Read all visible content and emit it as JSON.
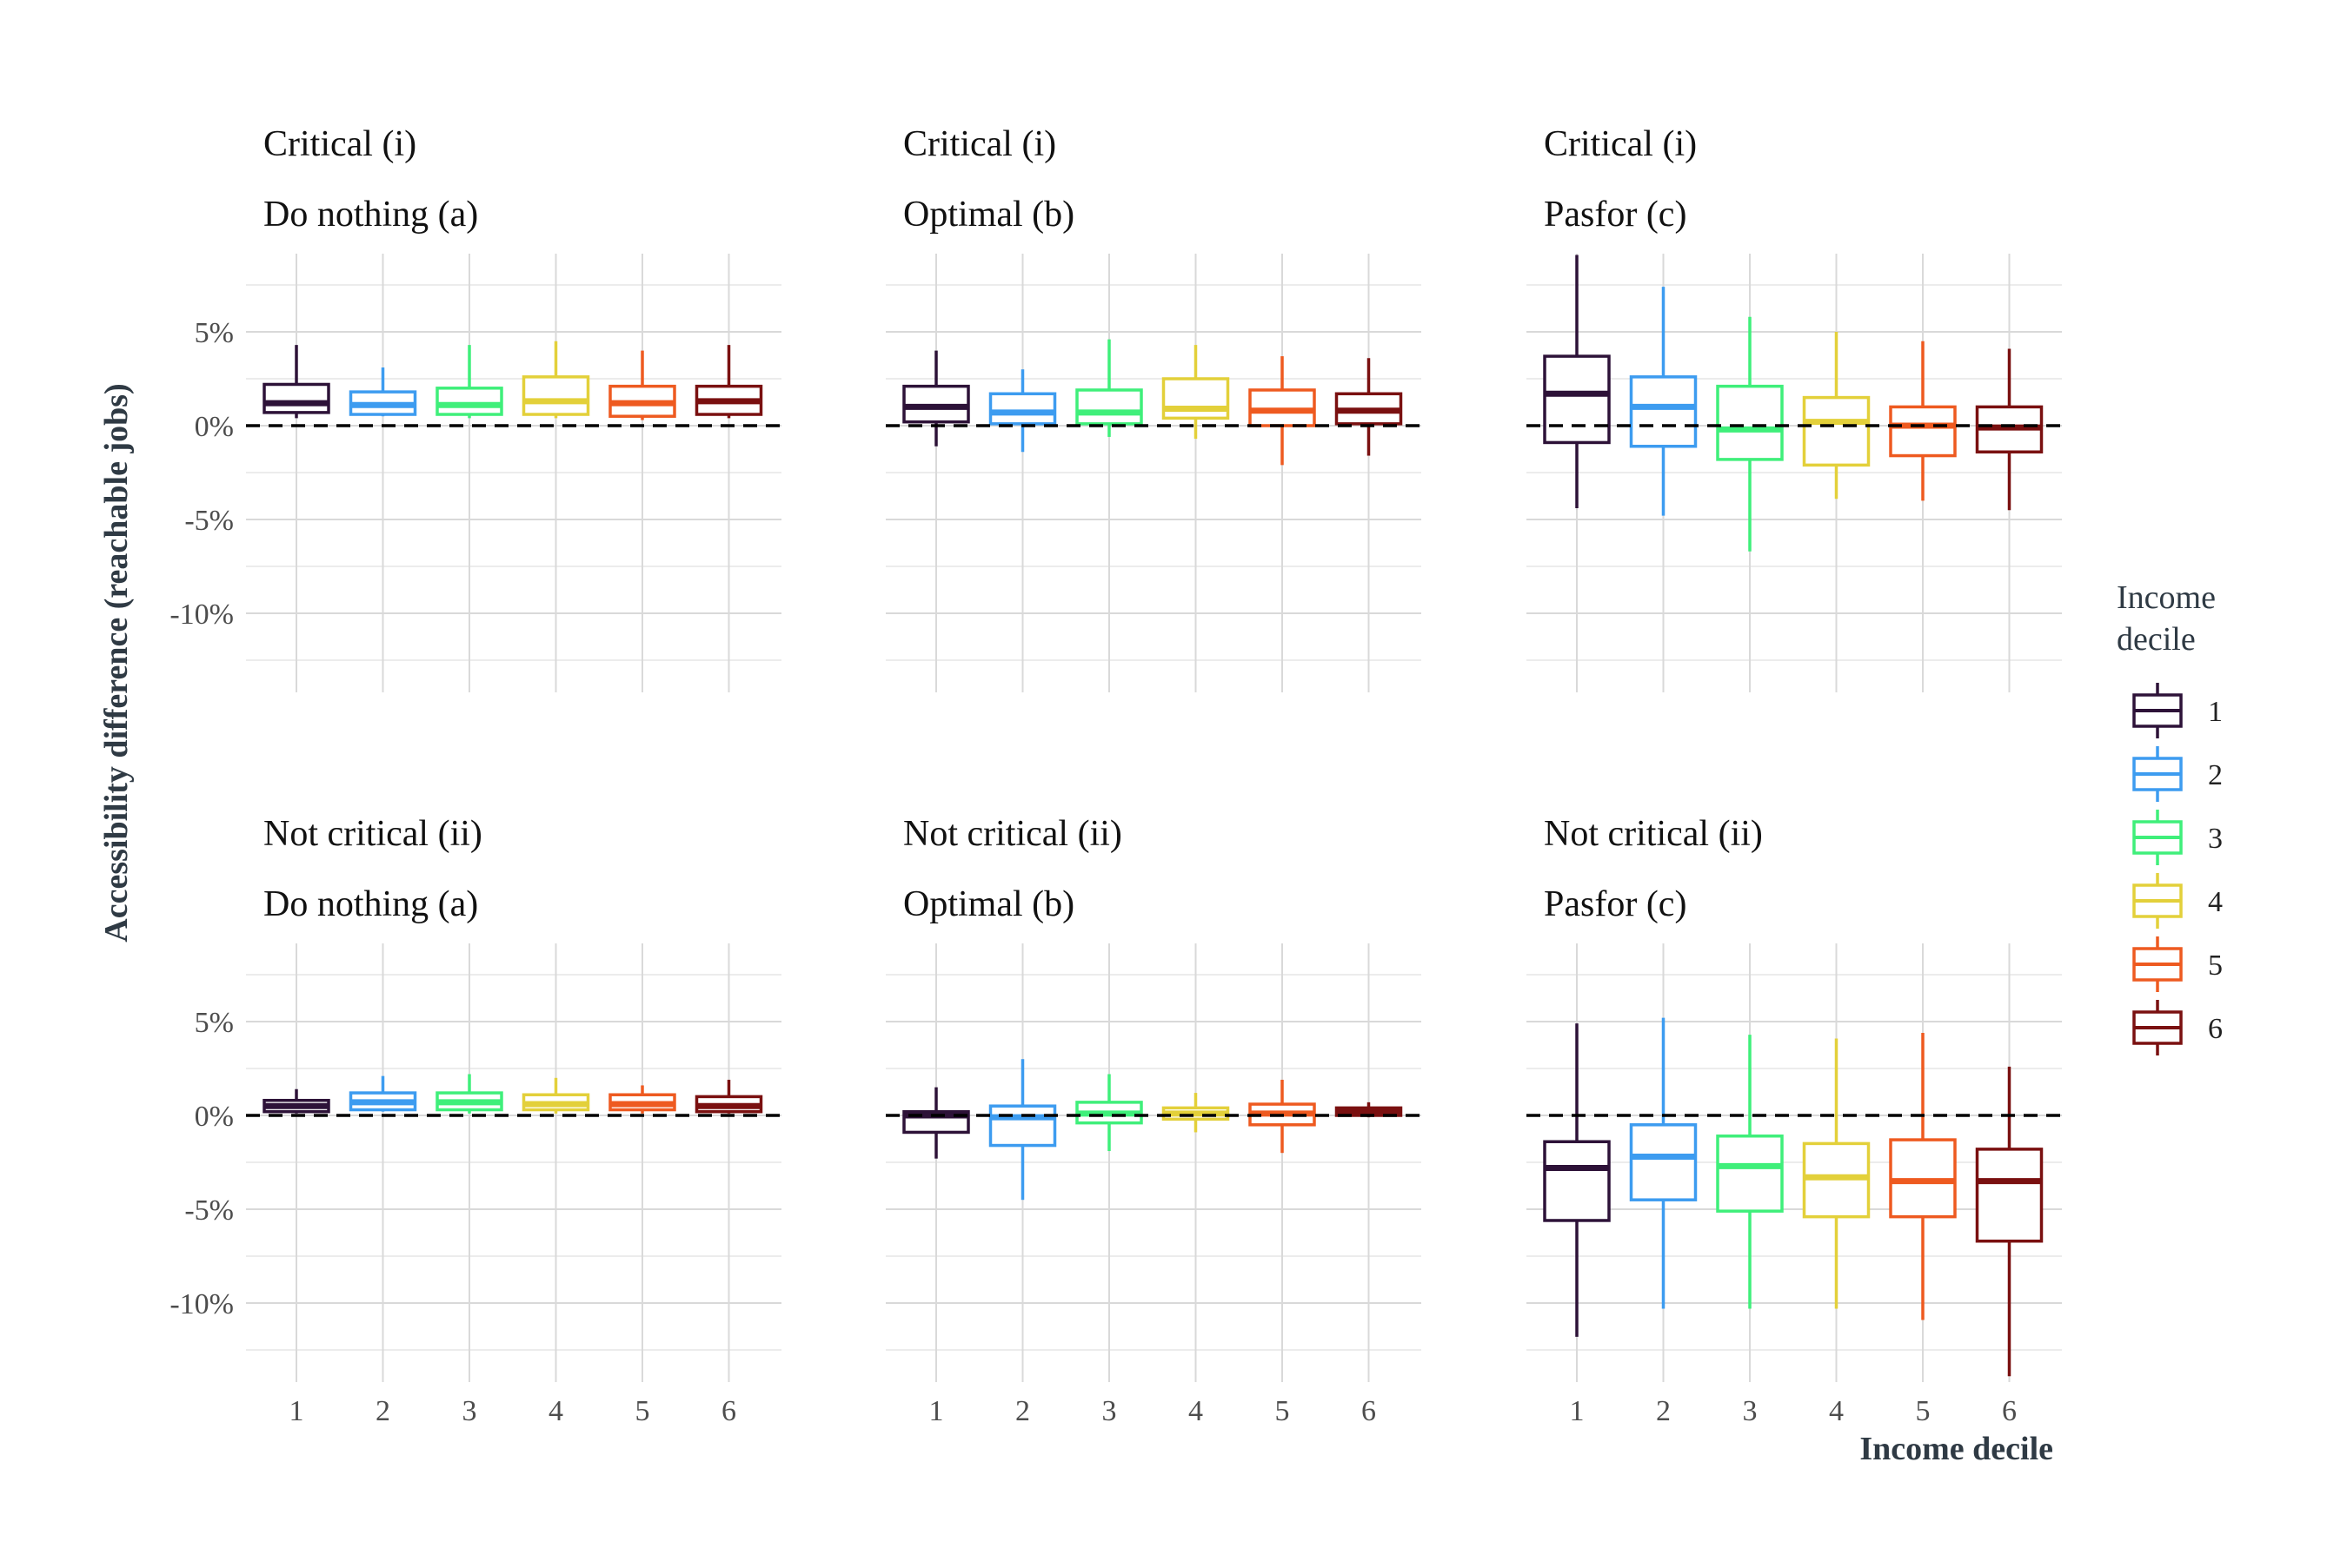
{
  "chart_data": {
    "type": "boxplot",
    "ylabel": "Accessibility difference (reachable jobs)",
    "xlabel": "Income decile",
    "categories": [
      "1",
      "2",
      "3",
      "4",
      "5",
      "6"
    ],
    "y_ticks": [
      "5%",
      "0%",
      "-5%",
      "-10%"
    ],
    "ylim": [
      -12.5,
      8.5
    ],
    "reference_line": 0,
    "legend": {
      "title_lines": [
        "Income",
        "decile"
      ],
      "position": "right",
      "items": [
        {
          "label": "1",
          "color": "#2d1238"
        },
        {
          "label": "2",
          "color": "#3d9cf0"
        },
        {
          "label": "3",
          "color": "#3fef7a"
        },
        {
          "label": "4",
          "color": "#e3d03a"
        },
        {
          "label": "5",
          "color": "#ee5a20"
        },
        {
          "label": "6",
          "color": "#7a1010"
        }
      ]
    },
    "panels": [
      {
        "title1": "Critical (i)",
        "title2": "Do nothing (a)",
        "boxes": [
          {
            "min": 0.4,
            "q1": 0.7,
            "median": 1.2,
            "q3": 2.2,
            "max": 4.3
          },
          {
            "min": 0.5,
            "q1": 0.6,
            "median": 1.1,
            "q3": 1.8,
            "max": 3.1
          },
          {
            "min": 0.4,
            "q1": 0.6,
            "median": 1.1,
            "q3": 2.0,
            "max": 4.3
          },
          {
            "min": 0.4,
            "q1": 0.6,
            "median": 1.3,
            "q3": 2.6,
            "max": 4.5
          },
          {
            "min": 0.3,
            "q1": 0.5,
            "median": 1.2,
            "q3": 2.1,
            "max": 4.0
          },
          {
            "min": 0.4,
            "q1": 0.6,
            "median": 1.3,
            "q3": 2.1,
            "max": 4.3
          }
        ]
      },
      {
        "title1": "Critical (i)",
        "title2": "Optimal (b)",
        "boxes": [
          {
            "min": -1.1,
            "q1": 0.2,
            "median": 1.0,
            "q3": 2.1,
            "max": 4.0
          },
          {
            "min": -1.4,
            "q1": 0.1,
            "median": 0.7,
            "q3": 1.7,
            "max": 3.0
          },
          {
            "min": -0.6,
            "q1": 0.1,
            "median": 0.7,
            "q3": 1.9,
            "max": 4.6
          },
          {
            "min": -0.7,
            "q1": 0.4,
            "median": 0.9,
            "q3": 2.5,
            "max": 4.3
          },
          {
            "min": -2.1,
            "q1": 0.0,
            "median": 0.8,
            "q3": 1.9,
            "max": 3.7
          },
          {
            "min": -1.6,
            "q1": 0.1,
            "median": 0.8,
            "q3": 1.7,
            "max": 3.6
          }
        ]
      },
      {
        "title1": "Critical (i)",
        "title2": "Pasfor (c)",
        "boxes": [
          {
            "min": -4.4,
            "q1": -0.9,
            "median": 1.7,
            "q3": 3.7,
            "max": 9.1
          },
          {
            "min": -4.8,
            "q1": -1.1,
            "median": 1.0,
            "q3": 2.6,
            "max": 7.4
          },
          {
            "min": -6.7,
            "q1": -1.8,
            "median": -0.2,
            "q3": 2.1,
            "max": 5.8
          },
          {
            "min": -3.9,
            "q1": -2.1,
            "median": 0.2,
            "q3": 1.5,
            "max": 5.0
          },
          {
            "min": -4.0,
            "q1": -1.6,
            "median": 0.0,
            "q3": 1.0,
            "max": 4.5
          },
          {
            "min": -4.5,
            "q1": -1.4,
            "median": -0.1,
            "q3": 1.0,
            "max": 4.1
          }
        ]
      },
      {
        "title1": "Not critical (ii)",
        "title2": "Do nothing (a)",
        "boxes": [
          {
            "min": 0.1,
            "q1": 0.2,
            "median": 0.5,
            "q3": 0.8,
            "max": 1.4
          },
          {
            "min": 0.2,
            "q1": 0.3,
            "median": 0.7,
            "q3": 1.2,
            "max": 2.1
          },
          {
            "min": 0.1,
            "q1": 0.3,
            "median": 0.7,
            "q3": 1.2,
            "max": 2.2
          },
          {
            "min": 0.1,
            "q1": 0.3,
            "median": 0.6,
            "q3": 1.1,
            "max": 2.0
          },
          {
            "min": 0.1,
            "q1": 0.3,
            "median": 0.6,
            "q3": 1.1,
            "max": 1.6
          },
          {
            "min": 0.1,
            "q1": 0.2,
            "median": 0.5,
            "q3": 1.0,
            "max": 1.9
          }
        ]
      },
      {
        "title1": "Not critical (ii)",
        "title2": "Optimal (b)",
        "boxes": [
          {
            "min": -2.3,
            "q1": -0.9,
            "median": 0.0,
            "q3": 0.2,
            "max": 1.5
          },
          {
            "min": -4.5,
            "q1": -1.6,
            "median": -0.1,
            "q3": 0.5,
            "max": 3.0
          },
          {
            "min": -1.9,
            "q1": -0.4,
            "median": 0.1,
            "q3": 0.7,
            "max": 2.2
          },
          {
            "min": -0.9,
            "q1": -0.2,
            "median": 0.1,
            "q3": 0.4,
            "max": 1.2
          },
          {
            "min": -2.0,
            "q1": -0.5,
            "median": 0.1,
            "q3": 0.6,
            "max": 1.9
          },
          {
            "min": -0.1,
            "q1": 0.0,
            "median": 0.2,
            "q3": 0.4,
            "max": 0.7
          }
        ]
      },
      {
        "title1": "Not critical (ii)",
        "title2": "Pasfor (c)",
        "boxes": [
          {
            "min": -11.8,
            "q1": -5.6,
            "median": -2.8,
            "q3": -1.4,
            "max": 4.9
          },
          {
            "min": -10.3,
            "q1": -4.5,
            "median": -2.2,
            "q3": -0.5,
            "max": 5.2
          },
          {
            "min": -10.3,
            "q1": -5.1,
            "median": -2.7,
            "q3": -1.1,
            "max": 4.3
          },
          {
            "min": -10.3,
            "q1": -5.4,
            "median": -3.3,
            "q3": -1.5,
            "max": 4.1
          },
          {
            "min": -10.9,
            "q1": -5.4,
            "median": -3.5,
            "q3": -1.3,
            "max": 4.4
          },
          {
            "min": -13.9,
            "q1": -6.7,
            "median": -3.5,
            "q3": -1.8,
            "max": 2.6
          }
        ]
      }
    ]
  }
}
